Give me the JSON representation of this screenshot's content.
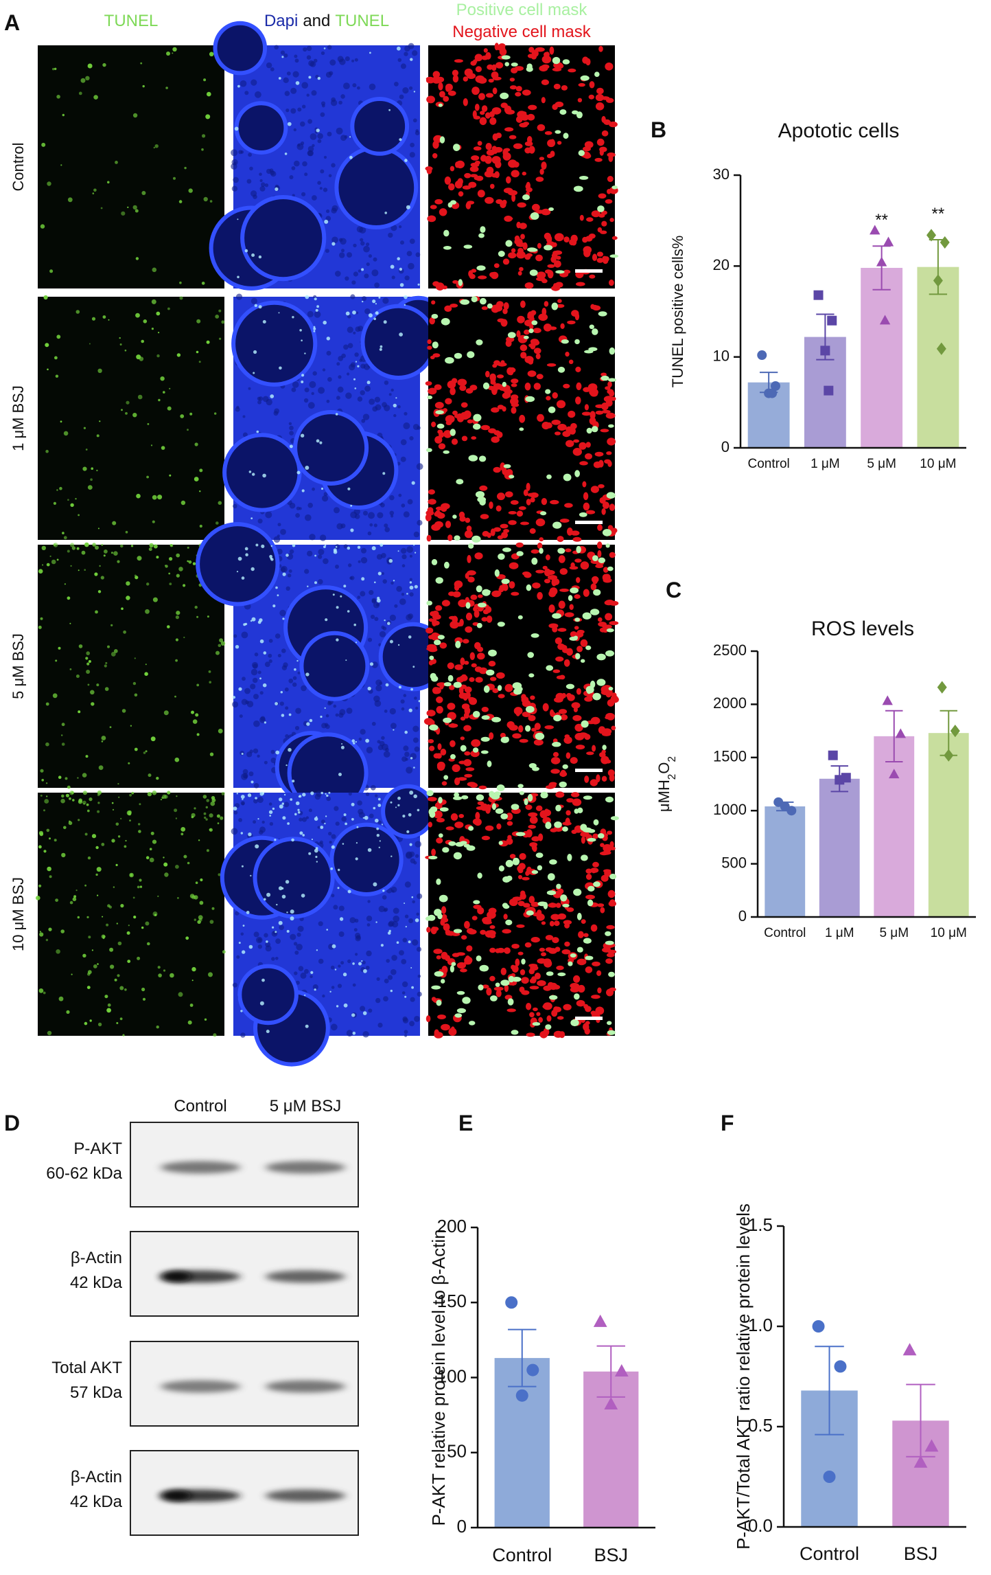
{
  "panel_a": {
    "letter": "A",
    "columns": [
      "TUNEL",
      [
        "Dapi",
        "and",
        "TUNEL"
      ],
      [
        "Positive cell mask",
        "Negative cell mask"
      ]
    ],
    "rows": [
      "Control",
      "1 μM BSJ",
      "5 μM BSJ",
      "10 μM BSJ"
    ]
  },
  "panel_d": {
    "letter": "D",
    "lanes": [
      "Control",
      "5 μM BSJ"
    ],
    "blots": [
      {
        "name": "P-AKT",
        "size": "60-62 kDa"
      },
      {
        "name": "β-Actin",
        "size": "42 kDa"
      },
      {
        "name": "Total AKT",
        "size": "57 kDa"
      },
      {
        "name": "β-Actin",
        "size": "42 kDa"
      }
    ]
  },
  "chart_data": [
    {
      "type": "bar",
      "panel": "B",
      "title": "Apototic cells",
      "ylabel": [
        {
          "text": "TUNEL positive cells%"
        }
      ],
      "categories": [
        "Control",
        "1 μM",
        "5 μM",
        "10 μM"
      ],
      "values": [
        7.2,
        12.2,
        19.8,
        19.9
      ],
      "errors": [
        1.1,
        2.5,
        2.4,
        3.0
      ],
      "points": [
        [
          10.2,
          6.8,
          6.0,
          6.0
        ],
        [
          16.8,
          14.0,
          10.7,
          6.3
        ],
        [
          23.9,
          22.6,
          20.4,
          14.0
        ],
        [
          23.4,
          22.6,
          18.4,
          10.9
        ]
      ],
      "colors": [
        "#96acd9",
        "#a99cd4",
        "#d9aadb",
        "#c8de9e"
      ],
      "point_colors": [
        "#4d69b5",
        "#5b46a6",
        "#9a4bb0",
        "#72993e"
      ],
      "markers": [
        "circle",
        "square",
        "triangle",
        "diamond"
      ],
      "annotations": [
        {
          "text": "**",
          "category": 2
        },
        {
          "text": "**",
          "category": 3
        }
      ],
      "ylim": [
        0,
        30
      ],
      "yticks": [
        0,
        10,
        20,
        30
      ]
    },
    {
      "type": "bar",
      "panel": "C",
      "title": "ROS levels",
      "ylabel": [
        {
          "text": "μMH"
        },
        {
          "text": "2",
          "sub": true
        },
        {
          "text": "O"
        },
        {
          "text": "2",
          "sub": true
        }
      ],
      "categories": [
        "Control",
        "1 μM",
        "5 μM",
        "10 μM"
      ],
      "values": [
        1040,
        1300,
        1700,
        1730
      ],
      "errors": [
        40,
        120,
        240,
        210
      ],
      "points": [
        [
          1080,
          1000,
          1040
        ],
        [
          1520,
          1310,
          1290
        ],
        [
          2030,
          1720,
          1340
        ],
        [
          2160,
          1750,
          1520
        ]
      ],
      "colors": [
        "#96acd9",
        "#a99cd4",
        "#d9aadb",
        "#c8de9e"
      ],
      "point_colors": [
        "#4d69b5",
        "#5b46a6",
        "#9a4bb0",
        "#72993e"
      ],
      "markers": [
        "circle",
        "square",
        "triangle",
        "diamond"
      ],
      "ylim": [
        0,
        2500
      ],
      "yticks": [
        0,
        500,
        1000,
        1500,
        2000,
        2500
      ]
    },
    {
      "type": "bar",
      "panel": "E",
      "ylabel": [
        {
          "text": "P-AKT relative protein level to β-Actin"
        }
      ],
      "categories": [
        "Control",
        "BSJ"
      ],
      "values": [
        113,
        104
      ],
      "errors": [
        19,
        17
      ],
      "points": [
        [
          150,
          105,
          88
        ],
        [
          137,
          104,
          82
        ]
      ],
      "colors": [
        "#8eaad9",
        "#cf95d0"
      ],
      "point_colors": [
        "#4a70c8",
        "#b15fc0"
      ],
      "markers": [
        "circle",
        "triangle"
      ],
      "ylim": [
        0,
        200
      ],
      "yticks": [
        0,
        50,
        100,
        150,
        200
      ]
    },
    {
      "type": "bar",
      "panel": "F",
      "ylabel": [
        {
          "text": "P-AKT/Total AKT ratio relative protein levels"
        }
      ],
      "categories": [
        "Control",
        "BSJ"
      ],
      "values": [
        0.68,
        0.53
      ],
      "errors": [
        0.22,
        0.18
      ],
      "points": [
        [
          1.0,
          0.8,
          0.25
        ],
        [
          0.88,
          0.4,
          0.32
        ]
      ],
      "colors": [
        "#8eaad9",
        "#cf95d0"
      ],
      "point_colors": [
        "#4a70c8",
        "#b15fc0"
      ],
      "markers": [
        "circle",
        "triangle"
      ],
      "ylim": [
        0,
        1.5
      ],
      "yticks": [
        {
          "value": 0,
          "label": "0.0"
        },
        0.5,
        {
          "value": 1,
          "label": "1.0"
        },
        1.5
      ]
    }
  ]
}
